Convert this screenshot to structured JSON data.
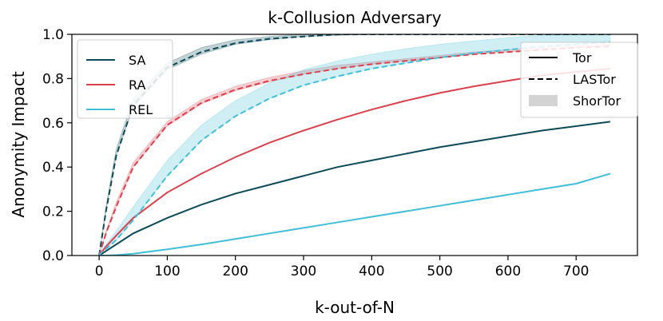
{
  "chart_data": {
    "type": "line",
    "title": "k-Collusion Adversary",
    "xlabel": "k-out-of-N",
    "ylabel": "Anonymity Impact",
    "xlim": [
      -40,
      790
    ],
    "ylim": [
      0,
      1.0
    ],
    "xticks": [
      0,
      100,
      200,
      300,
      400,
      500,
      600,
      700
    ],
    "yticks": [
      0.0,
      0.2,
      0.4,
      0.6,
      0.8,
      1.0
    ],
    "xtick_labels": [
      "0",
      "100",
      "200",
      "300",
      "400",
      "500",
      "600",
      "700"
    ],
    "ytick_labels": [
      "0.0",
      "0.2",
      "0.4",
      "0.6",
      "0.8",
      "1.0"
    ],
    "grid": false,
    "x": [
      0,
      5,
      10,
      25,
      50,
      100,
      150,
      200,
      250,
      300,
      350,
      400,
      450,
      500,
      550,
      600,
      650,
      700,
      750
    ],
    "colors": {
      "SA": "#0d4a57",
      "RA": "#d9414d",
      "REL": "#3fbed8",
      "shortor_band": "#bdbdbd"
    },
    "series": [
      {
        "name": "SA",
        "variant": "Tor",
        "style": "solid",
        "color": "#0d4a57",
        "values": [
          0.0,
          0.01,
          0.02,
          0.05,
          0.1,
          0.17,
          0.23,
          0.28,
          0.32,
          0.36,
          0.4,
          0.43,
          0.46,
          0.49,
          0.515,
          0.54,
          0.565,
          0.585,
          0.605
        ]
      },
      {
        "name": "SA",
        "variant": "LASTor",
        "style": "dashed",
        "color": "#0d4a57",
        "values": [
          0.0,
          0.1,
          0.2,
          0.45,
          0.68,
          0.85,
          0.92,
          0.96,
          0.98,
          0.99,
          1.0,
          1.0,
          1.0,
          1.0,
          1.0,
          1.0,
          1.0,
          1.0,
          1.0
        ]
      },
      {
        "name": "RA",
        "variant": "Tor",
        "style": "solid",
        "color": "#d9414d",
        "values": [
          0.0,
          0.02,
          0.04,
          0.09,
          0.17,
          0.285,
          0.37,
          0.445,
          0.51,
          0.565,
          0.615,
          0.66,
          0.7,
          0.735,
          0.765,
          0.79,
          0.815,
          0.83,
          0.845
        ]
      },
      {
        "name": "RA",
        "variant": "LASTor",
        "style": "dashed",
        "color": "#d9414d",
        "values": [
          0.0,
          0.05,
          0.1,
          0.22,
          0.4,
          0.59,
          0.69,
          0.75,
          0.79,
          0.82,
          0.845,
          0.865,
          0.88,
          0.895,
          0.91,
          0.92,
          0.93,
          0.94,
          0.945
        ]
      },
      {
        "name": "REL",
        "variant": "Tor",
        "style": "solid",
        "color": "#3fbed8",
        "values": [
          0.0,
          0.0,
          0.0,
          0.002,
          0.008,
          0.028,
          0.05,
          0.075,
          0.1,
          0.125,
          0.15,
          0.175,
          0.2,
          0.225,
          0.25,
          0.275,
          0.3,
          0.325,
          0.37
        ]
      },
      {
        "name": "REL",
        "variant": "LASTor",
        "style": "dashed",
        "color": "#3fbed8",
        "values": [
          0.0,
          0.02,
          0.03,
          0.07,
          0.16,
          0.36,
          0.52,
          0.63,
          0.71,
          0.77,
          0.81,
          0.845,
          0.87,
          0.895,
          0.915,
          0.93,
          0.945,
          0.955,
          0.965
        ]
      }
    ],
    "bands": [
      {
        "name": "SA",
        "variant": "ShorTor",
        "color": "#0d4a57",
        "lower": [
          0.0,
          0.1,
          0.2,
          0.45,
          0.67,
          0.84,
          0.91,
          0.955,
          0.975,
          0.99,
          0.995,
          1.0,
          1.0,
          1.0,
          1.0,
          1.0,
          1.0,
          1.0,
          1.0
        ],
        "upper": [
          0.0,
          0.11,
          0.22,
          0.48,
          0.71,
          0.87,
          0.94,
          0.975,
          0.99,
          1.0,
          1.0,
          1.0,
          1.0,
          1.0,
          1.0,
          1.0,
          1.0,
          1.0,
          1.0
        ]
      },
      {
        "name": "RA",
        "variant": "ShorTor",
        "color": "#d9414d",
        "lower": [
          0.0,
          0.05,
          0.1,
          0.22,
          0.4,
          0.585,
          0.685,
          0.745,
          0.785,
          0.82,
          0.845,
          0.865,
          0.88,
          0.895,
          0.91,
          0.92,
          0.93,
          0.94,
          0.945
        ],
        "upper": [
          0.0,
          0.055,
          0.11,
          0.24,
          0.42,
          0.605,
          0.705,
          0.765,
          0.805,
          0.835,
          0.86,
          0.875,
          0.89,
          0.905,
          0.92,
          0.93,
          0.94,
          0.95,
          0.955
        ]
      },
      {
        "name": "REL",
        "variant": "ShorTor",
        "color": "#3fbed8",
        "lower": [
          0.0,
          0.02,
          0.03,
          0.07,
          0.16,
          0.36,
          0.52,
          0.63,
          0.71,
          0.77,
          0.81,
          0.845,
          0.87,
          0.895,
          0.915,
          0.93,
          0.945,
          0.955,
          0.965
        ],
        "upper": [
          0.0,
          0.03,
          0.05,
          0.11,
          0.22,
          0.43,
          0.59,
          0.7,
          0.78,
          0.84,
          0.88,
          0.91,
          0.935,
          0.955,
          0.97,
          0.985,
          0.995,
          1.0,
          1.0
        ]
      }
    ],
    "legends": [
      {
        "position": "top-left",
        "entries": [
          {
            "label": "SA",
            "color": "#0d4a57",
            "style": "solid"
          },
          {
            "label": "RA",
            "color": "#d9414d",
            "style": "solid"
          },
          {
            "label": "REL",
            "color": "#3fbed8",
            "style": "solid"
          }
        ]
      },
      {
        "position": "top-right",
        "entries": [
          {
            "label": "Tor",
            "color": "#000000",
            "style": "solid"
          },
          {
            "label": "LASTor",
            "color": "#000000",
            "style": "dashed"
          },
          {
            "label": "ShorTor",
            "color": "#d3d3d3",
            "style": "band"
          }
        ]
      }
    ]
  }
}
